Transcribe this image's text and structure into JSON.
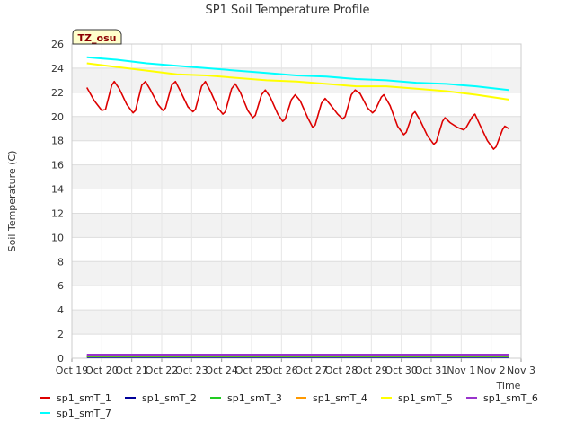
{
  "chart_data": {
    "type": "line",
    "title": "SP1 Soil Temperature Profile",
    "xlabel": "Time",
    "ylabel": "Soil Temperature (C)",
    "badge": "TZ_osu",
    "ylim": [
      0,
      26
    ],
    "yticks": [
      0,
      2,
      4,
      6,
      8,
      10,
      12,
      14,
      16,
      18,
      20,
      22,
      24,
      26
    ],
    "xlim": [
      "2022-10-19",
      "2022-11-03"
    ],
    "xticks": [
      {
        "date": "2022-10-19",
        "label": "Oct 19"
      },
      {
        "date": "2022-10-20",
        "label": "Oct 20"
      },
      {
        "date": "2022-10-21",
        "label": "Oct 21"
      },
      {
        "date": "2022-10-22",
        "label": "Oct 22"
      },
      {
        "date": "2022-10-23",
        "label": "Oct 23"
      },
      {
        "date": "2022-10-24",
        "label": "Oct 24"
      },
      {
        "date": "2022-10-25",
        "label": "Oct 25"
      },
      {
        "date": "2022-10-26",
        "label": "Oct 26"
      },
      {
        "date": "2022-10-27",
        "label": "Oct 27"
      },
      {
        "date": "2022-10-28",
        "label": "Oct 28"
      },
      {
        "date": "2022-10-29",
        "label": "Oct 29"
      },
      {
        "date": "2022-10-30",
        "label": "Oct 30"
      },
      {
        "date": "2022-10-31",
        "label": "Oct 31"
      },
      {
        "date": "2022-11-01",
        "label": "Nov 1"
      },
      {
        "date": "2022-11-02",
        "label": "Nov 2"
      },
      {
        "date": "2022-11-03",
        "label": "Nov 3"
      }
    ],
    "grid": true,
    "legend_position": "bottom",
    "series": [
      {
        "name": "sp1_smT_1",
        "color": "#dd0000",
        "points": [
          [
            "2022-10-19 12:00",
            22.4
          ],
          [
            "2022-10-19 18:00",
            21.3
          ],
          [
            "2022-10-20 00:00",
            20.5
          ],
          [
            "2022-10-20 03:00",
            20.6
          ],
          [
            "2022-10-20 08:00",
            22.6
          ],
          [
            "2022-10-20 10:00",
            22.9
          ],
          [
            "2022-10-20 14:00",
            22.3
          ],
          [
            "2022-10-20 20:00",
            21.0
          ],
          [
            "2022-10-21 01:00",
            20.3
          ],
          [
            "2022-10-21 03:00",
            20.5
          ],
          [
            "2022-10-21 08:00",
            22.6
          ],
          [
            "2022-10-21 11:00",
            22.9
          ],
          [
            "2022-10-21 15:00",
            22.2
          ],
          [
            "2022-10-21 21:00",
            21.0
          ],
          [
            "2022-10-22 01:00",
            20.5
          ],
          [
            "2022-10-22 03:00",
            20.7
          ],
          [
            "2022-10-22 08:00",
            22.6
          ],
          [
            "2022-10-22 11:00",
            22.9
          ],
          [
            "2022-10-22 15:00",
            22.1
          ],
          [
            "2022-10-22 21:00",
            20.8
          ],
          [
            "2022-10-23 01:00",
            20.4
          ],
          [
            "2022-10-23 03:00",
            20.6
          ],
          [
            "2022-10-23 08:00",
            22.5
          ],
          [
            "2022-10-23 11:00",
            22.9
          ],
          [
            "2022-10-23 15:00",
            22.1
          ],
          [
            "2022-10-23 21:00",
            20.7
          ],
          [
            "2022-10-24 01:00",
            20.2
          ],
          [
            "2022-10-24 03:00",
            20.4
          ],
          [
            "2022-10-24 08:00",
            22.3
          ],
          [
            "2022-10-24 11:00",
            22.7
          ],
          [
            "2022-10-24 15:00",
            22.0
          ],
          [
            "2022-10-24 21:00",
            20.5
          ],
          [
            "2022-10-25 01:00",
            19.9
          ],
          [
            "2022-10-25 03:00",
            20.1
          ],
          [
            "2022-10-25 08:00",
            21.8
          ],
          [
            "2022-10-25 11:00",
            22.2
          ],
          [
            "2022-10-25 15:00",
            21.6
          ],
          [
            "2022-10-25 21:00",
            20.2
          ],
          [
            "2022-10-26 01:00",
            19.6
          ],
          [
            "2022-10-26 03:00",
            19.8
          ],
          [
            "2022-10-26 08:00",
            21.4
          ],
          [
            "2022-10-26 11:00",
            21.8
          ],
          [
            "2022-10-26 15:00",
            21.3
          ],
          [
            "2022-10-26 21:00",
            19.9
          ],
          [
            "2022-10-27 01:00",
            19.1
          ],
          [
            "2022-10-27 03:00",
            19.3
          ],
          [
            "2022-10-27 08:00",
            21.1
          ],
          [
            "2022-10-27 11:00",
            21.5
          ],
          [
            "2022-10-27 15:00",
            21.0
          ],
          [
            "2022-10-27 21:00",
            20.2
          ],
          [
            "2022-10-28 01:00",
            19.8
          ],
          [
            "2022-10-28 03:00",
            20.0
          ],
          [
            "2022-10-28 08:00",
            21.8
          ],
          [
            "2022-10-28 11:00",
            22.2
          ],
          [
            "2022-10-28 15:00",
            21.9
          ],
          [
            "2022-10-28 21:00",
            20.7
          ],
          [
            "2022-10-29 01:00",
            20.3
          ],
          [
            "2022-10-29 03:00",
            20.5
          ],
          [
            "2022-10-29 08:00",
            21.6
          ],
          [
            "2022-10-29 10:00",
            21.8
          ],
          [
            "2022-10-29 15:00",
            20.9
          ],
          [
            "2022-10-29 21:00",
            19.2
          ],
          [
            "2022-10-30 02:00",
            18.5
          ],
          [
            "2022-10-30 04:00",
            18.7
          ],
          [
            "2022-10-30 09:00",
            20.2
          ],
          [
            "2022-10-30 11:00",
            20.4
          ],
          [
            "2022-10-30 15:00",
            19.7
          ],
          [
            "2022-10-30 21:00",
            18.4
          ],
          [
            "2022-10-31 02:00",
            17.7
          ],
          [
            "2022-10-31 04:00",
            17.9
          ],
          [
            "2022-10-31 09:00",
            19.6
          ],
          [
            "2022-10-31 11:00",
            19.9
          ],
          [
            "2022-10-31 15:00",
            19.5
          ],
          [
            "2022-10-31 21:00",
            19.1
          ],
          [
            "2022-11-01 02:00",
            18.9
          ],
          [
            "2022-11-01 04:00",
            19.1
          ],
          [
            "2022-11-01 09:00",
            20.0
          ],
          [
            "2022-11-01 11:00",
            20.2
          ],
          [
            "2022-11-01 15:00",
            19.3
          ],
          [
            "2022-11-01 21:00",
            18.0
          ],
          [
            "2022-11-02 02:00",
            17.3
          ],
          [
            "2022-11-02 04:00",
            17.5
          ],
          [
            "2022-11-02 09:00",
            18.9
          ],
          [
            "2022-11-02 11:00",
            19.2
          ],
          [
            "2022-11-02 14:00",
            19.0
          ]
        ]
      },
      {
        "name": "sp1_smT_2",
        "color": "#000099",
        "points": [
          [
            "2022-10-19 12:00",
            0.1
          ],
          [
            "2022-11-02 14:00",
            0.1
          ]
        ]
      },
      {
        "name": "sp1_smT_3",
        "color": "#22cc22",
        "points": [
          [
            "2022-10-19 12:00",
            0.15
          ],
          [
            "2022-11-02 14:00",
            0.15
          ]
        ]
      },
      {
        "name": "sp1_smT_4",
        "color": "#ff9900",
        "points": [
          [
            "2022-10-19 12:00",
            0.2
          ],
          [
            "2022-11-02 14:00",
            0.2
          ]
        ]
      },
      {
        "name": "sp1_smT_5",
        "color": "#ffff00",
        "points": [
          [
            "2022-10-19 12:00",
            24.4
          ],
          [
            "2022-10-20 12:00",
            24.1
          ],
          [
            "2022-10-21 12:00",
            23.8
          ],
          [
            "2022-10-22 12:00",
            23.5
          ],
          [
            "2022-10-23 12:00",
            23.4
          ],
          [
            "2022-10-24 12:00",
            23.2
          ],
          [
            "2022-10-25 12:00",
            23.0
          ],
          [
            "2022-10-26 12:00",
            22.9
          ],
          [
            "2022-10-27 12:00",
            22.7
          ],
          [
            "2022-10-28 12:00",
            22.5
          ],
          [
            "2022-10-29 12:00",
            22.5
          ],
          [
            "2022-10-30 12:00",
            22.3
          ],
          [
            "2022-10-31 12:00",
            22.1
          ],
          [
            "2022-11-01 12:00",
            21.8
          ],
          [
            "2022-11-02 14:00",
            21.4
          ]
        ]
      },
      {
        "name": "sp1_smT_6",
        "color": "#9933cc",
        "points": [
          [
            "2022-10-19 12:00",
            0.3
          ],
          [
            "2022-11-02 14:00",
            0.3
          ]
        ]
      },
      {
        "name": "sp1_smT_7",
        "color": "#00ffff",
        "points": [
          [
            "2022-10-19 12:00",
            24.9
          ],
          [
            "2022-10-20 12:00",
            24.7
          ],
          [
            "2022-10-21 12:00",
            24.4
          ],
          [
            "2022-10-22 12:00",
            24.2
          ],
          [
            "2022-10-23 12:00",
            24.0
          ],
          [
            "2022-10-24 12:00",
            23.8
          ],
          [
            "2022-10-25 12:00",
            23.6
          ],
          [
            "2022-10-26 12:00",
            23.4
          ],
          [
            "2022-10-27 12:00",
            23.3
          ],
          [
            "2022-10-28 12:00",
            23.1
          ],
          [
            "2022-10-29 12:00",
            23.0
          ],
          [
            "2022-10-30 12:00",
            22.8
          ],
          [
            "2022-10-31 12:00",
            22.7
          ],
          [
            "2022-11-01 12:00",
            22.5
          ],
          [
            "2022-11-02 14:00",
            22.2
          ]
        ]
      }
    ]
  }
}
